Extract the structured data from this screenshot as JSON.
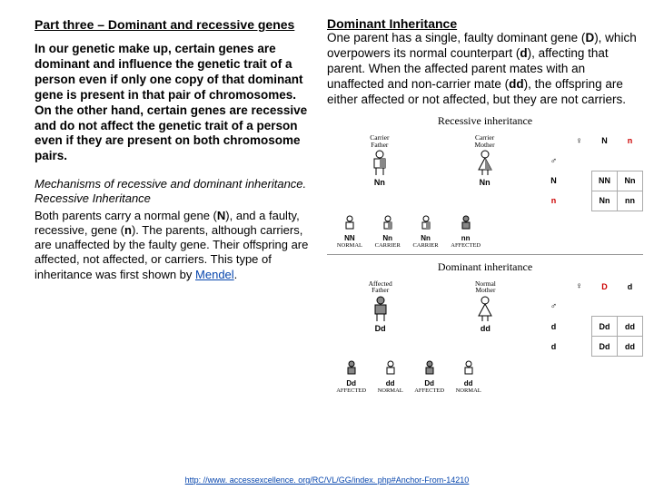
{
  "left": {
    "title": "Part three – Dominant and recessive genes",
    "p1": "In our genetic make up, certain genes are dominant and influence the genetic trait of a person even if only one copy of that dominant gene is present in that pair of chromosomes. On the other hand, certain genes are recessive and do not affect the genetic trait of a person even if they are present on both chromosome pairs.",
    "sub1": "Mechanisms of recessive and dominant inheritance.",
    "sub2": " Recessive Inheritance",
    "p2a": "Both parents carry a normal gene (",
    "p2N": "N",
    "p2b": "), and a faulty, recessive, gene (",
    "p2n": "n",
    "p2c": "). The parents, although carriers, are unaffected by the faulty gene. Their offspring are affected, not affected, or carriers. This type of inheritance was first shown by ",
    "mendel": "Mendel",
    "p2d": "."
  },
  "right": {
    "h": "Dominant Inheritance",
    "p1a": "One parent has a single, faulty dominant gene (",
    "p1D": "D",
    "p1b": "), which overpowers its normal counterpart (",
    "p1d": "d",
    "p1c": "), affecting that parent. When the affected parent mates with an unaffected and non-carrier mate (",
    "p1dd": "dd",
    "p1e": "), the offspring are either affected or not affected, but they are not carriers."
  },
  "rec": {
    "title": "Recessive inheritance",
    "father": "Carrier\nFather",
    "mother": "Carrier\nMother",
    "geno": "Nn",
    "punnett": {
      "cols": [
        "N",
        "n"
      ],
      "rows": [
        "N",
        "n"
      ],
      "cells": [
        [
          "NN",
          "Nn"
        ],
        [
          "Nn",
          "nn"
        ]
      ]
    },
    "off": [
      {
        "g": "NN",
        "l": "NORMAL"
      },
      {
        "g": "Nn",
        "l": "CARRIER"
      },
      {
        "g": "Nn",
        "l": "CARRIER"
      },
      {
        "g": "nn",
        "l": "AFFECTED"
      }
    ]
  },
  "dom": {
    "title": "Dominant inheritance",
    "father": "Affected\nFather",
    "mother": "Normal\nMother",
    "fgeno": "Dd",
    "mgeno": "dd",
    "punnett": {
      "cols": [
        "D",
        "d"
      ],
      "rows": [
        "d",
        "d"
      ],
      "cells": [
        [
          "Dd",
          "dd"
        ],
        [
          "Dd",
          "dd"
        ]
      ]
    },
    "off": [
      {
        "g": "Dd",
        "l": "AFFECTED"
      },
      {
        "g": "dd",
        "l": "NORMAL"
      },
      {
        "g": "Dd",
        "l": "AFFECTED"
      },
      {
        "g": "dd",
        "l": "NORMAL"
      }
    ]
  },
  "footer": "http: //www. accessexcellence. org/RC/VL/GG/index. php#Anchor-From-14210",
  "colors": {
    "link": "#0645ad",
    "red": "#cc0000",
    "fill_affected": "#888888",
    "fill_carrier_half": "#888888"
  }
}
